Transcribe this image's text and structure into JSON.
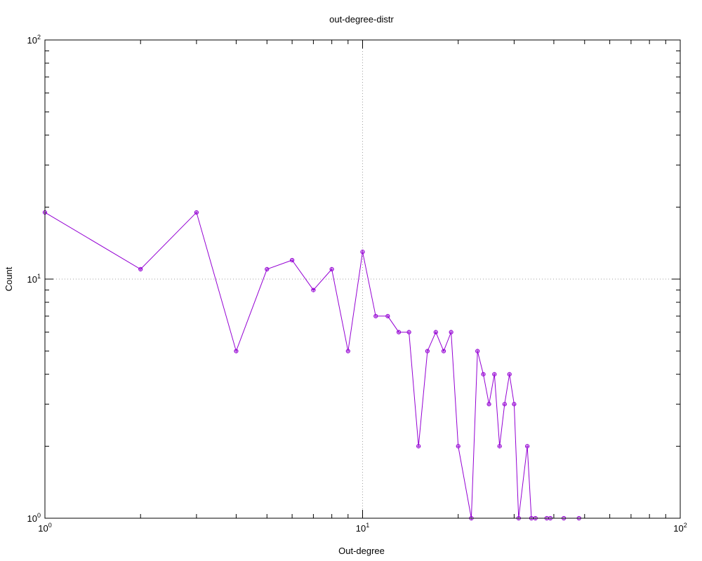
{
  "chart_data": {
    "type": "line",
    "title": "out-degree-distr",
    "xlabel": "Out-degree",
    "ylabel": "Count",
    "x_scale": "log",
    "y_scale": "log",
    "xlim": [
      1,
      100
    ],
    "ylim": [
      1,
      100
    ],
    "grid": "major gridlines at 10 on both axes (dotted)",
    "colors": {
      "series": "#9400d3",
      "grid": "#a0a0a0",
      "frame": "#000000"
    },
    "marker": "small open circle with cross",
    "x_ticks": [
      {
        "base": "10",
        "exp": "0"
      },
      {
        "base": "10",
        "exp": "1"
      },
      {
        "base": "10",
        "exp": "2"
      }
    ],
    "y_ticks": [
      {
        "base": "10",
        "exp": "0"
      },
      {
        "base": "10",
        "exp": "1"
      },
      {
        "base": "10",
        "exp": "2"
      }
    ],
    "series": [
      {
        "x": [
          1,
          2,
          3,
          4,
          5,
          6,
          7,
          8,
          9,
          10,
          11,
          12,
          13,
          14,
          15,
          16,
          17,
          18,
          19,
          20,
          22,
          23,
          24,
          25,
          26,
          27,
          28,
          29,
          30,
          31,
          33,
          34,
          35,
          38,
          39,
          43,
          48
        ],
        "y": [
          19,
          11,
          19,
          5,
          11,
          12,
          9,
          11,
          5,
          13,
          7,
          7,
          6,
          6,
          2,
          5,
          6,
          5,
          6,
          2,
          1,
          5,
          4,
          3,
          4,
          2,
          3,
          4,
          3,
          1,
          2,
          1,
          1,
          1,
          1,
          1,
          1
        ]
      }
    ]
  }
}
